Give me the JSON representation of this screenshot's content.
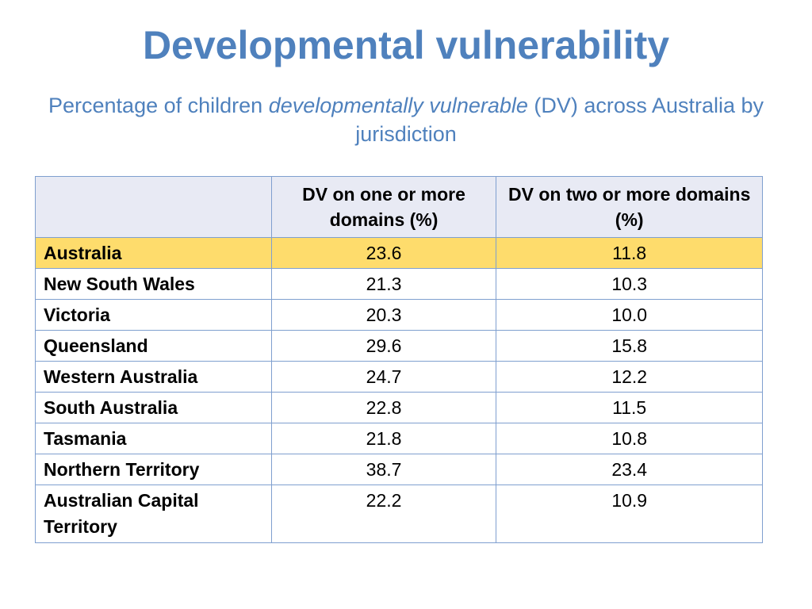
{
  "slide": {
    "title": "Developmental vulnerability",
    "subtitle_pre": "Percentage of children ",
    "subtitle_italic": "developmentally vulnerable",
    "subtitle_post": " (DV) across Australia by jurisdiction"
  },
  "table": {
    "headers": [
      "",
      "DV on one or more domains (%)",
      "DV on two or more domains (%)"
    ],
    "rows": [
      {
        "jurisdiction": "Australia",
        "one_or_more": "23.6",
        "two_or_more": "11.8"
      },
      {
        "jurisdiction": "New South Wales",
        "one_or_more": "21.3",
        "two_or_more": "10.3"
      },
      {
        "jurisdiction": "Victoria",
        "one_or_more": "20.3",
        "two_or_more": "10.0"
      },
      {
        "jurisdiction": "Queensland",
        "one_or_more": "29.6",
        "two_or_more": "15.8"
      },
      {
        "jurisdiction": "Western Australia",
        "one_or_more": "24.7",
        "two_or_more": "12.2"
      },
      {
        "jurisdiction": "South Australia",
        "one_or_more": "22.8",
        "two_or_more": "11.5"
      },
      {
        "jurisdiction": "Tasmania",
        "one_or_more": "21.8",
        "two_or_more": "10.8"
      },
      {
        "jurisdiction": "Northern Territory",
        "one_or_more": "38.7",
        "two_or_more": "23.4"
      },
      {
        "jurisdiction": "Australian Capital Territory",
        "one_or_more": "22.2",
        "two_or_more": "10.9"
      }
    ]
  },
  "colors": {
    "title": "#4f81bd",
    "header_bg": "#e8eaf4",
    "highlight_row": "#fedc6c",
    "border": "#7f9fcf"
  }
}
